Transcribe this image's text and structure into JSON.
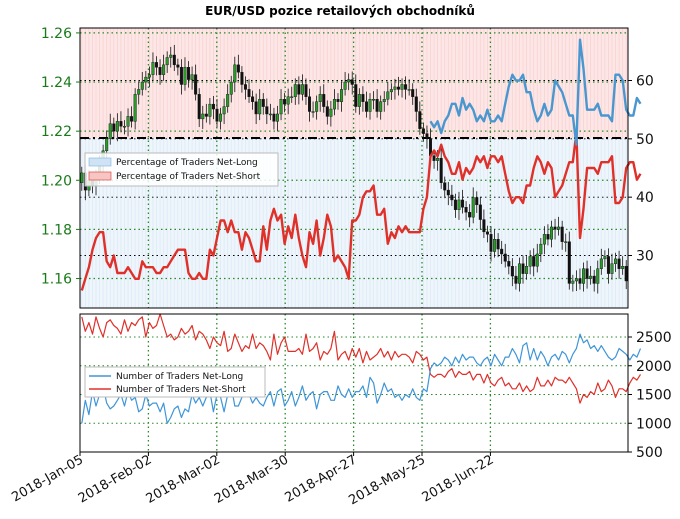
{
  "chart_data": [
    {
      "type": "line",
      "title": "EUR/USD pozice retailových obchodníků",
      "xlabel": "",
      "ylabel": "",
      "x_ticks": [
        "2018-Jan-05",
        "2018-Feb-02",
        "2018-Mar-02",
        "2018-Mar-30",
        "2018-Apr-27",
        "2018-May-25",
        "2018-Jun-22"
      ],
      "price_axis": {
        "ticks": [
          1.16,
          1.18,
          1.2,
          1.22,
          1.24,
          1.26
        ],
        "labels": [
          "1.16",
          "1.18",
          "1.20",
          "1.22",
          "1.24",
          "1.26"
        ],
        "ylim": [
          1.148,
          1.262
        ],
        "color": "#1a7a1a"
      },
      "pct_axis": {
        "ticks": [
          30,
          40,
          50,
          60
        ],
        "labels": [
          "30",
          "40",
          "50",
          "60"
        ],
        "ylim": [
          21,
          69
        ],
        "reference_line": 50
      },
      "legend": {
        "placement": "center-left",
        "items": [
          "Percentage of Traders Net-Long",
          "Percentage of Traders Net-Short"
        ]
      },
      "grid": true,
      "price_close": [
        1.203,
        1.196,
        1.2,
        1.198,
        1.201,
        1.206,
        1.212,
        1.217,
        1.223,
        1.22,
        1.224,
        1.222,
        1.222,
        1.226,
        1.224,
        1.235,
        1.237,
        1.24,
        1.242,
        1.243,
        1.248,
        1.246,
        1.243,
        1.247,
        1.25,
        1.251,
        1.247,
        1.246,
        1.239,
        1.246,
        1.241,
        1.243,
        1.235,
        1.225,
        1.227,
        1.226,
        1.231,
        1.229,
        1.224,
        1.227,
        1.23,
        1.235,
        1.24,
        1.247,
        1.244,
        1.239,
        1.237,
        1.234,
        1.232,
        1.227,
        1.233,
        1.23,
        1.227,
        1.227,
        1.224,
        1.227,
        1.233,
        1.231,
        1.234,
        1.234,
        1.239,
        1.235,
        1.239,
        1.234,
        1.228,
        1.228,
        1.232,
        1.235,
        1.23,
        1.226,
        1.229,
        1.233,
        1.232,
        1.237,
        1.24,
        1.241,
        1.239,
        1.23,
        1.235,
        1.232,
        1.228,
        1.233,
        1.233,
        1.228,
        1.232,
        1.233,
        1.236,
        1.237,
        1.238,
        1.237,
        1.239,
        1.237,
        1.237,
        1.234,
        1.228,
        1.221,
        1.219,
        1.217,
        1.21,
        1.208,
        1.209,
        1.199,
        1.196,
        1.194,
        1.192,
        1.188,
        1.192,
        1.189,
        1.187,
        1.185,
        1.193,
        1.19,
        1.184,
        1.179,
        1.178,
        1.171,
        1.176,
        1.172,
        1.17,
        1.167,
        1.165,
        1.161,
        1.158,
        1.166,
        1.162,
        1.165,
        1.169,
        1.165,
        1.17,
        1.174,
        1.178,
        1.176,
        1.181,
        1.18,
        1.181,
        1.175,
        1.175,
        1.158,
        1.159,
        1.16,
        1.158,
        1.164,
        1.16,
        1.161,
        1.158,
        1.164,
        1.168,
        1.169,
        1.162,
        1.166,
        1.168,
        1.164,
        1.165,
        1.159
      ],
      "pct_long": [
        null,
        null,
        null,
        null,
        null,
        null,
        null,
        null,
        null,
        null,
        null,
        null,
        null,
        null,
        null,
        null,
        null,
        null,
        null,
        null,
        null,
        null,
        null,
        null,
        null,
        null,
        null,
        null,
        null,
        null,
        null,
        null,
        null,
        null,
        null,
        null,
        null,
        null,
        null,
        null,
        null,
        null,
        null,
        null,
        null,
        null,
        null,
        null,
        null,
        null,
        null,
        null,
        null,
        null,
        null,
        null,
        null,
        null,
        null,
        null,
        null,
        null,
        null,
        null,
        null,
        null,
        null,
        null,
        null,
        null,
        null,
        null,
        null,
        null,
        null,
        null,
        null,
        null,
        null,
        null,
        null,
        null,
        null,
        null,
        null,
        null,
        null,
        null,
        null,
        null,
        null,
        null,
        null,
        null,
        null,
        null,
        null,
        null,
        53,
        52,
        53,
        51,
        53,
        54,
        56,
        56,
        54,
        57,
        55,
        56,
        55,
        53,
        54,
        53,
        55,
        53,
        53,
        54,
        53,
        56,
        59,
        61,
        60,
        60,
        61,
        58,
        58,
        55,
        53,
        54,
        56,
        54,
        55,
        60,
        59,
        58,
        56,
        54,
        54,
        49,
        67,
        62,
        55,
        55,
        55,
        56,
        54,
        54,
        54,
        53,
        61,
        61,
        60,
        55,
        54,
        54,
        57,
        56
      ],
      "pct_short": [
        24,
        26,
        28,
        31,
        33,
        34,
        34,
        29,
        28,
        30,
        27,
        27,
        27,
        28,
        27,
        26,
        26,
        29,
        28,
        28,
        28,
        27,
        27,
        28,
        28,
        29,
        30,
        31,
        31,
        31,
        27,
        26,
        26,
        27,
        26,
        26,
        31,
        30,
        33,
        36,
        36,
        34,
        36,
        34,
        34,
        31,
        34,
        33,
        31,
        29,
        29,
        35,
        31,
        36,
        38,
        36,
        37,
        32,
        35,
        33,
        37,
        33,
        30,
        28,
        34,
        32,
        36,
        30,
        33,
        37,
        35,
        29,
        30,
        29,
        28,
        26,
        36,
        36,
        37,
        40,
        41,
        41,
        42,
        37,
        37,
        38,
        32,
        34,
        33,
        35,
        34,
        35,
        34,
        34,
        34,
        34,
        38,
        40,
        47,
        48,
        47,
        49,
        47,
        46,
        44,
        44,
        46,
        43,
        45,
        44,
        45,
        47,
        46,
        47,
        45,
        47,
        47,
        46,
        47,
        44,
        41,
        39,
        40,
        40,
        39,
        42,
        42,
        45,
        47,
        46,
        44,
        46,
        45,
        40,
        41,
        42,
        44,
        46,
        46,
        51,
        33,
        38,
        45,
        45,
        45,
        44,
        46,
        46,
        46,
        47,
        39,
        39,
        40,
        45,
        46,
        46,
        43,
        44
      ]
    },
    {
      "type": "line",
      "title": "",
      "xlabel": "",
      "ylabel": "",
      "x_ticks": [
        "2018-Jan-05",
        "2018-Feb-02",
        "2018-Mar-02",
        "2018-Mar-30",
        "2018-Apr-27",
        "2018-May-25",
        "2018-Jun-22"
      ],
      "y_axis": {
        "ticks": [
          500,
          1000,
          1500,
          2000,
          2500
        ],
        "labels": [
          "500",
          "1000",
          "1500",
          "2000",
          "2500"
        ],
        "ylim": [
          500,
          2900
        ]
      },
      "legend": {
        "placement": "center-left",
        "items": [
          "Number of Traders Net-Long",
          "Number of Traders Net-Short"
        ]
      },
      "grid": true,
      "series": [
        {
          "name": "Number of Traders Net-Long",
          "color": "#3e95d8",
          "values": [
            1000,
            1400,
            1150,
            1550,
            1300,
            1500,
            1650,
            1350,
            1250,
            1300,
            1400,
            1500,
            1300,
            1550,
            1400,
            1450,
            1200,
            1250,
            1500,
            1300,
            1350,
            1350,
            1200,
            1350,
            1000,
            1100,
            1250,
            1300,
            1100,
            1250,
            1200,
            1500,
            1350,
            1450,
            1300,
            1450,
            1550,
            1200,
            1500,
            1450,
            1200,
            1500,
            1650,
            1300,
            1300,
            1450,
            1550,
            1500,
            1350,
            1450,
            1350,
            1300,
            1450,
            1550,
            1300,
            1550,
            1600,
            1300,
            1400,
            1550,
            1300,
            1450,
            1650,
            1400,
            1500,
            1550,
            1250,
            1500,
            1550,
            1550,
            1400,
            1400,
            1650,
            1500,
            1450,
            1600,
            1450,
            1550,
            1550,
            1650,
            1450,
            1800,
            1700,
            1350,
            1500,
            1700,
            1550,
            1600,
            1450,
            1500,
            1400,
            1500,
            1450,
            1600,
            1450,
            1400,
            1600,
            1550,
            1950,
            2050,
            2000,
            2050,
            2150,
            2100,
            2000,
            2150,
            2050,
            2200,
            2100,
            2150,
            2150,
            2050,
            2000,
            2100,
            2150,
            2000,
            2200,
            2100,
            2000,
            2150,
            2150,
            2300,
            2200,
            2050,
            2350,
            2400,
            2100,
            2300,
            2100,
            2250,
            2150,
            2000,
            2150,
            2200,
            2100,
            2250,
            2200,
            2050,
            2200,
            2300,
            2550,
            2400,
            2450,
            2300,
            2350,
            2250,
            2350,
            2250,
            2150,
            2100,
            2150,
            2300,
            2250,
            2200,
            2100,
            2200,
            2150,
            2300
          ]
        },
        {
          "name": "Number of Traders Net-Short",
          "color": "#e0302a",
          "values": [
            2850,
            2600,
            2750,
            2550,
            2850,
            2650,
            2500,
            2750,
            2800,
            2700,
            2650,
            2550,
            2800,
            2600,
            2750,
            2700,
            2800,
            2850,
            2500,
            2750,
            2650,
            2700,
            2900,
            2700,
            2500,
            2550,
            2450,
            2500,
            2650,
            2550,
            2600,
            2700,
            2450,
            2600,
            2550,
            2450,
            2300,
            2500,
            2400,
            2350,
            2600,
            2250,
            2300,
            2550,
            2400,
            2250,
            2350,
            2300,
            2550,
            2300,
            2400,
            2350,
            2250,
            2100,
            2550,
            2200,
            2400,
            2500,
            2250,
            2250,
            2250,
            2300,
            2200,
            2550,
            2250,
            2300,
            2400,
            2100,
            2250,
            2200,
            2300,
            2600,
            2100,
            2200,
            2250,
            2100,
            2300,
            2150,
            2300,
            2050,
            2250,
            2100,
            2150,
            2200,
            2300,
            2150,
            2250,
            2100,
            2250,
            2150,
            2200,
            2200,
            2150,
            2050,
            2250,
            2200,
            2100,
            2150,
            1850,
            1800,
            1850,
            1850,
            1800,
            1900,
            1950,
            1800,
            1900,
            1850,
            1850,
            1900,
            1750,
            1850,
            1850,
            1700,
            1850,
            1700,
            1650,
            1750,
            1800,
            1650,
            1700,
            1600,
            1600,
            1700,
            1550,
            1650,
            1550,
            1600,
            1800,
            1650,
            1650,
            1750,
            1650,
            1800,
            1750,
            1750,
            1700,
            1800,
            1700,
            1600,
            1350,
            1500,
            1450,
            1550,
            1500,
            1700,
            1550,
            1600,
            1750,
            1650,
            1450,
            1600,
            1600,
            1550,
            1700,
            1800,
            1750,
            1850
          ]
        }
      ]
    }
  ]
}
